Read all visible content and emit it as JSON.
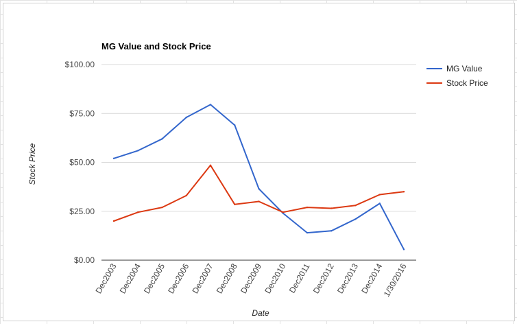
{
  "chart_data": {
    "type": "line",
    "title": "MG Value and Stock Price",
    "xlabel": "Date",
    "ylabel": "Stock Price",
    "categories": [
      "Dec2003",
      "Dec2004",
      "Dec2005",
      "Dec2006",
      "Dec2007",
      "Dec2008",
      "Dec2009",
      "Dec2010",
      "Dec2011",
      "Dec2012",
      "Dec2013",
      "Dec2014",
      "1/30/2016"
    ],
    "series": [
      {
        "name": "MG Value",
        "color": "#3366cc",
        "values": [
          52,
          56,
          62,
          73,
          79.5,
          69,
          36.5,
          24,
          14,
          15,
          21,
          29,
          5.5
        ]
      },
      {
        "name": "Stock Price",
        "color": "#dc3912",
        "values": [
          20,
          24.5,
          27,
          33,
          48.5,
          28.5,
          30,
          24.5,
          27,
          26.5,
          28,
          33.5,
          35
        ]
      }
    ],
    "ylim": [
      0,
      100
    ],
    "yticks": [
      0,
      25,
      50,
      75,
      100
    ],
    "ytick_labels": [
      "$0.00",
      "$25.00",
      "$50.00",
      "$75.00",
      "$100.00"
    ],
    "grid": true,
    "legend_position": "right"
  }
}
